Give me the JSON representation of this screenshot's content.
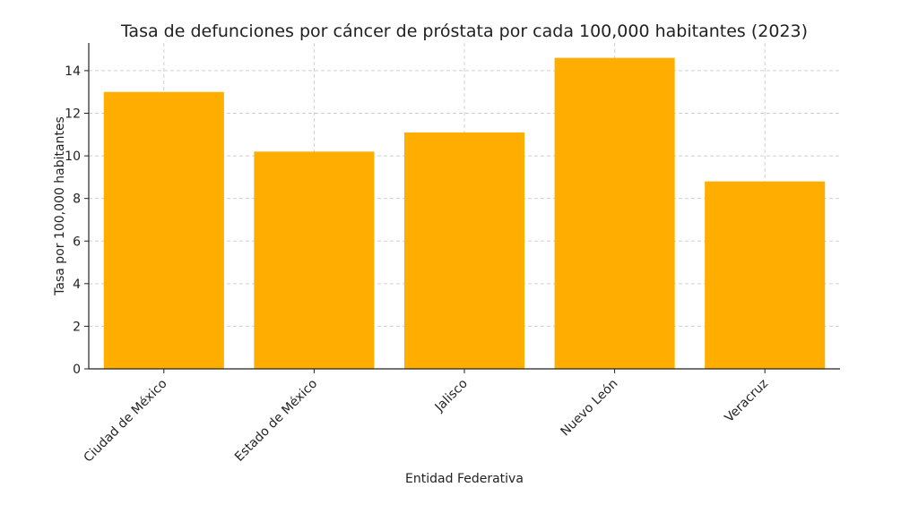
{
  "chart_data": {
    "type": "bar",
    "title": "Tasa de defunciones por cáncer de próstata por cada 100,000 habitantes (2023)",
    "xlabel": "Entidad Federativa",
    "ylabel": "Tasa por 100,000 habitantes",
    "categories": [
      "Ciudad de México",
      "Estado de México",
      "Jalisco",
      "Nuevo León",
      "Veracruz"
    ],
    "values": [
      13.0,
      10.2,
      11.1,
      14.6,
      8.8
    ],
    "ylim": [
      0,
      15.3
    ],
    "yticks": [
      0,
      2,
      4,
      6,
      8,
      10,
      12,
      14
    ],
    "grid": true,
    "bar_color": "#ffae00"
  }
}
